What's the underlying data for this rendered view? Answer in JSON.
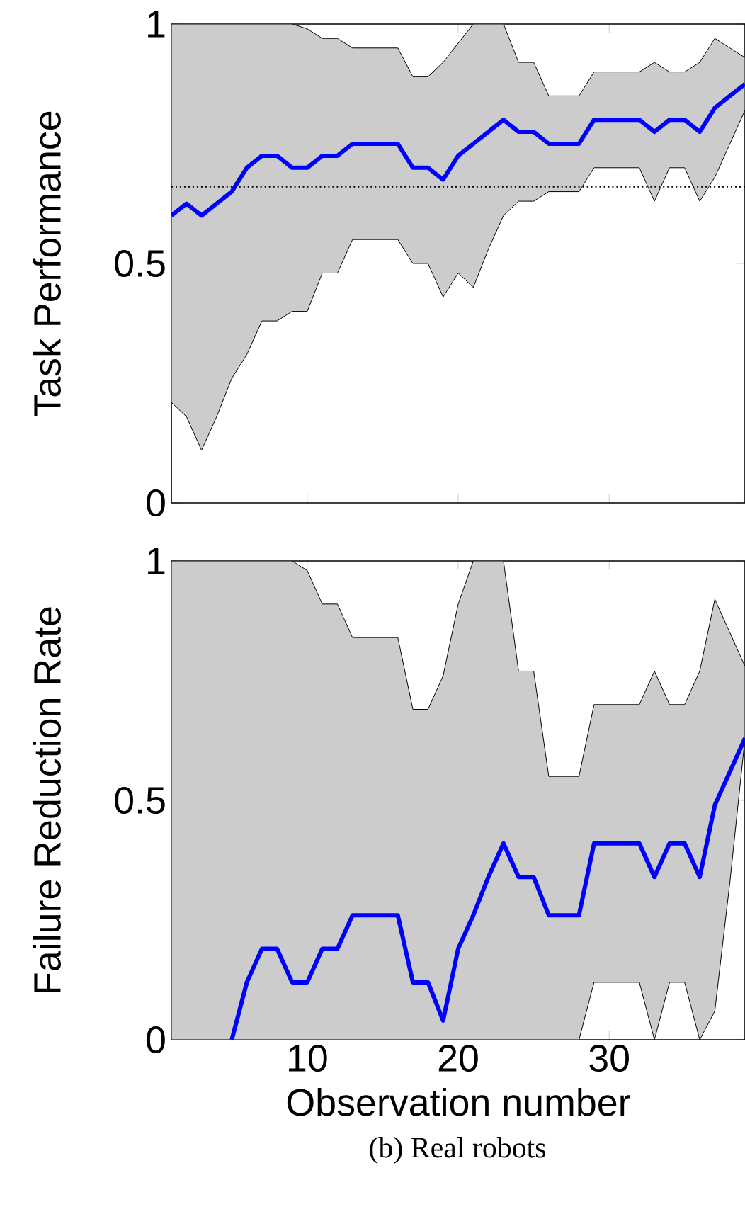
{
  "chart_data": [
    {
      "type": "line",
      "ylabel": "Task Performance",
      "x": [
        1,
        2,
        3,
        4,
        5,
        6,
        7,
        8,
        9,
        10,
        11,
        12,
        13,
        14,
        15,
        16,
        17,
        18,
        19,
        20,
        21,
        22,
        23,
        24,
        25,
        26,
        27,
        28,
        29,
        30,
        31,
        32,
        33,
        34,
        35,
        36,
        37,
        38,
        39
      ],
      "series": [
        {
          "color": "#0000ff",
          "values": [
            0.6,
            0.625,
            0.6,
            0.625,
            0.65,
            0.7,
            0.725,
            0.725,
            0.7,
            0.7,
            0.725,
            0.725,
            0.75,
            0.75,
            0.75,
            0.75,
            0.7,
            0.7,
            0.675,
            0.725,
            0.75,
            0.775,
            0.8,
            0.775,
            0.775,
            0.75,
            0.75,
            0.75,
            0.8,
            0.8,
            0.8,
            0.8,
            0.775,
            0.8,
            0.8,
            0.775,
            0.825,
            0.85,
            0.875
          ],
          "lower": [
            0.21,
            0.18,
            0.11,
            0.18,
            0.26,
            0.31,
            0.38,
            0.38,
            0.4,
            0.4,
            0.48,
            0.48,
            0.55,
            0.55,
            0.55,
            0.55,
            0.5,
            0.5,
            0.43,
            0.48,
            0.45,
            0.53,
            0.6,
            0.63,
            0.63,
            0.65,
            0.65,
            0.65,
            0.7,
            0.7,
            0.7,
            0.7,
            0.63,
            0.7,
            0.7,
            0.63,
            0.68,
            0.75,
            0.82
          ],
          "upper": [
            1,
            1,
            1,
            1,
            1,
            1,
            1,
            1,
            1,
            0.99,
            0.97,
            0.97,
            0.95,
            0.95,
            0.95,
            0.95,
            0.89,
            0.89,
            0.92,
            0.96,
            1,
            1,
            1,
            0.92,
            0.92,
            0.85,
            0.85,
            0.85,
            0.9,
            0.9,
            0.9,
            0.9,
            0.92,
            0.9,
            0.9,
            0.92,
            0.97,
            0.95,
            0.93
          ]
        }
      ],
      "xlim": [
        1,
        39
      ],
      "xticks": [
        10,
        20,
        30
      ],
      "ylim": [
        0,
        1
      ],
      "yticks": [
        0,
        0.5,
        1
      ],
      "tick_labels": "y",
      "ref_lines": [
        {
          "axis": "y",
          "value": 0.66,
          "color": "#000000",
          "line_style": "dotted"
        }
      ]
    },
    {
      "type": "line",
      "ylabel": "Failure Reduction Rate",
      "xlabel": "Observation number",
      "x": [
        1,
        2,
        3,
        4,
        5,
        6,
        7,
        8,
        9,
        10,
        11,
        12,
        13,
        14,
        15,
        16,
        17,
        18,
        19,
        20,
        21,
        22,
        23,
        24,
        25,
        26,
        27,
        28,
        29,
        30,
        31,
        32,
        33,
        34,
        35,
        36,
        37,
        38,
        39
      ],
      "series": [
        {
          "color": "#0000ff",
          "values": [
            null,
            null,
            null,
            null,
            0,
            0.12,
            0.19,
            0.19,
            0.12,
            0.12,
            0.19,
            0.19,
            0.26,
            0.26,
            0.26,
            0.26,
            0.12,
            0.12,
            0.04,
            0.19,
            0.26,
            0.34,
            0.41,
            0.34,
            0.34,
            0.26,
            0.26,
            0.26,
            0.41,
            0.41,
            0.41,
            0.41,
            0.34,
            0.41,
            0.41,
            0.34,
            0.49,
            0.56,
            0.63
          ],
          "lower": [
            0,
            0,
            0,
            0,
            0,
            0,
            0,
            0,
            0,
            0,
            0,
            0,
            0,
            0,
            0,
            0,
            0,
            0,
            0,
            0,
            0,
            0,
            0,
            0,
            0,
            0,
            0,
            0,
            0.12,
            0.12,
            0.12,
            0.12,
            0,
            0.12,
            0.12,
            0,
            0.06,
            0.33,
            0.63
          ],
          "upper": [
            1,
            1,
            1,
            1,
            1,
            1,
            1,
            1,
            1,
            0.98,
            0.91,
            0.91,
            0.84,
            0.84,
            0.84,
            0.84,
            0.69,
            0.69,
            0.76,
            0.91,
            1,
            1,
            1,
            0.77,
            0.77,
            0.55,
            0.55,
            0.55,
            0.7,
            0.7,
            0.7,
            0.7,
            0.77,
            0.7,
            0.7,
            0.77,
            0.92,
            0.85,
            0.78
          ]
        }
      ],
      "xlim": [
        1,
        39
      ],
      "xticks": [
        10,
        20,
        30
      ],
      "ylim": [
        0,
        1
      ],
      "yticks": [
        0,
        0.5,
        1
      ],
      "annotations": [
        "(b) Real robots"
      ]
    }
  ]
}
